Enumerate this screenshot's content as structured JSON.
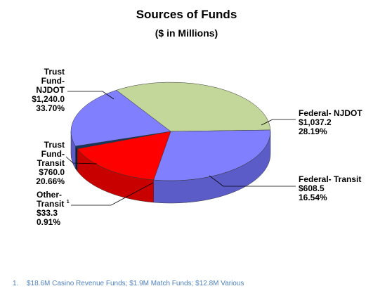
{
  "chart_data": {
    "type": "pie",
    "title": "Sources of Funds",
    "subtitle": "($ in Millions)",
    "slices": [
      {
        "name": "Trust Fund-NJDOT",
        "value": 1240.0,
        "percent": 33.7,
        "color": "#c4d79b",
        "side_color": "#9bab76"
      },
      {
        "name": "Federal- NJDOT",
        "value": 1037.2,
        "percent": 28.19,
        "color": "#8080ff",
        "side_color": "#5c5cc9"
      },
      {
        "name": "Federal- Transit",
        "value": 608.5,
        "percent": 16.54,
        "color": "#ff0000",
        "side_color": "#c80000"
      },
      {
        "name": "Other-Transit",
        "value": 33.3,
        "percent": 0.91,
        "color": "#17365d",
        "side_color": "#0c1f36"
      },
      {
        "name": "Trust Fund-Transit",
        "value": 760.0,
        "percent": 20.66,
        "color": "#8080ff",
        "side_color": "#5c5cc9"
      }
    ]
  },
  "labels": {
    "trust_njdot": {
      "line1": "Trust",
      "line2": "Fund-",
      "line3": "NJDOT",
      "value": "$1,240.0",
      "pct": "33.70%"
    },
    "fed_njdot": {
      "line1": "Federal- NJDOT",
      "value": "$1,037.2",
      "pct": "28.19%"
    },
    "fed_transit": {
      "line1": "Federal- Transit",
      "value": "$608.5",
      "pct": "16.54%"
    },
    "trust_transit": {
      "line1": "Trust",
      "line2": "Fund-",
      "line3": "Transit",
      "value": "$760.0",
      "pct": "20.66%"
    },
    "other_transit": {
      "line1": "Other-",
      "line2": "Transit",
      "sup": "1",
      "value": "$33.3",
      "pct": "0.91%"
    }
  },
  "footnote": {
    "number": "1.",
    "text": "$18.6M Casino Revenue Funds; $1.9M Match Funds; $12.8M Various"
  },
  "colors": {
    "leader_line": "#000000",
    "footnote": "#4f81bd"
  }
}
